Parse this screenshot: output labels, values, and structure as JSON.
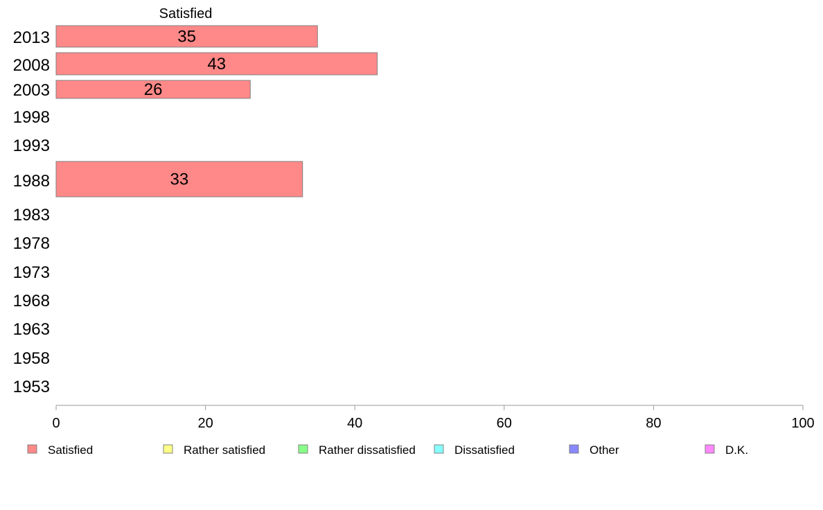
{
  "chart_data": {
    "type": "bar",
    "orientation": "horizontal",
    "title": "Satisfied",
    "categories": [
      "2013",
      "2008",
      "2003",
      "1998",
      "1993",
      "1988",
      "1983",
      "1978",
      "1973",
      "1968",
      "1963",
      "1958",
      "1953"
    ],
    "series": [
      {
        "name": "Satisfied",
        "values": [
          35,
          43,
          26,
          null,
          null,
          33,
          null,
          null,
          null,
          null,
          null,
          null,
          null
        ],
        "color": "#ff8888"
      }
    ],
    "xlim": [
      0,
      100
    ],
    "xticks": [
      0,
      20,
      40,
      60,
      80,
      100
    ],
    "grid": false,
    "legend": {
      "placement": "bottom",
      "items": [
        {
          "label": "Satisfied",
          "color": "#ff8888"
        },
        {
          "label": "Rather satisfied",
          "color": "#ffff88"
        },
        {
          "label": "Rather dissatisfied",
          "color": "#88ff88"
        },
        {
          "label": "Dissatisfied",
          "color": "#88ffff"
        },
        {
          "label": "Other",
          "color": "#8888ff"
        },
        {
          "label": "D.K.",
          "color": "#ff88ff"
        }
      ]
    }
  }
}
